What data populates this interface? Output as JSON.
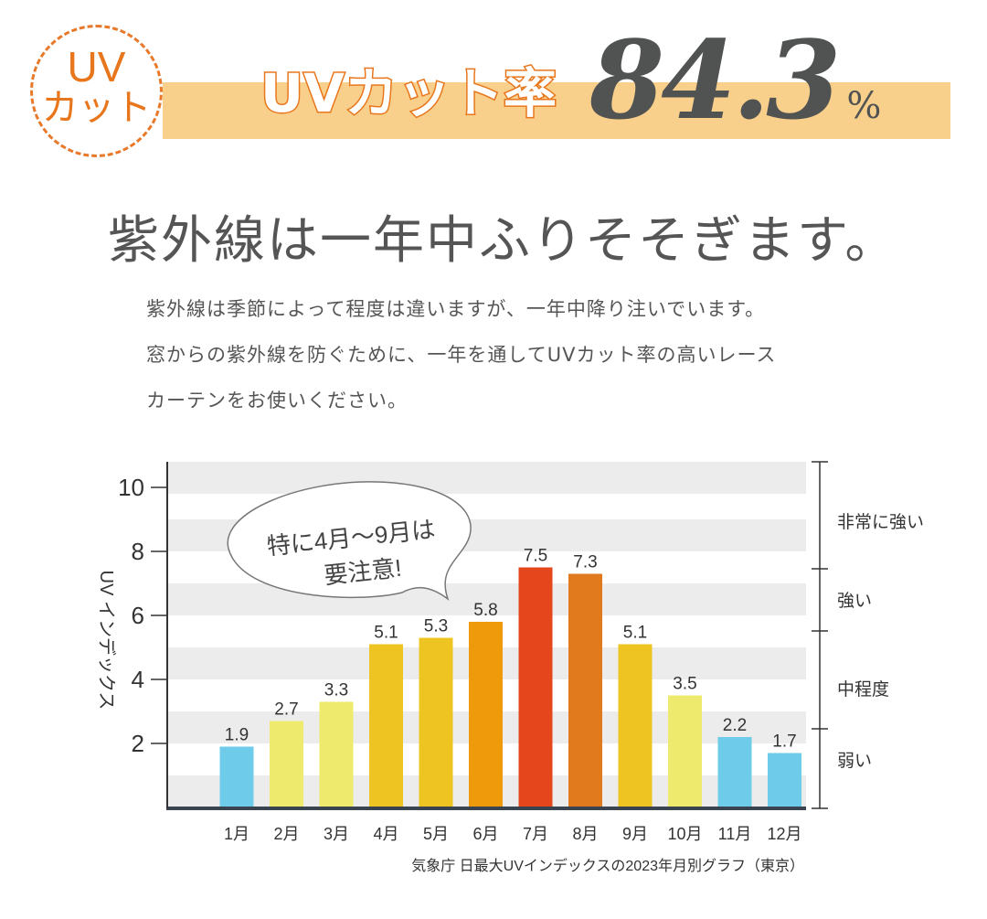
{
  "badge": {
    "line1": "UV",
    "line2": "カット"
  },
  "header": {
    "headline": "UVカット率",
    "rate": "84.3",
    "unit": "%"
  },
  "subtitle": "紫外線は一年中ふりそそぎます。",
  "body": [
    "紫外線は季節によって程度は違いますが、一年中降り注いでいます。",
    "窓からの紫外線を防ぐために、一年を通してUVカット率の高いレース",
    "カーテンをお使いください。"
  ],
  "colors": {
    "accent": "#e8761c",
    "band": "#f8cf8b",
    "text": "#555555"
  },
  "chart_data": {
    "type": "bar",
    "categories": [
      "1月",
      "2月",
      "3月",
      "4月",
      "5月",
      "6月",
      "7月",
      "8月",
      "9月",
      "10月",
      "11月",
      "12月"
    ],
    "values": [
      1.9,
      2.7,
      3.3,
      5.1,
      5.3,
      5.8,
      7.5,
      7.3,
      5.1,
      3.5,
      2.2,
      1.7
    ],
    "colors": [
      "#6ecbea",
      "#eeea6e",
      "#eeea6e",
      "#eec423",
      "#eec423",
      "#ef9a0a",
      "#e5461c",
      "#e07a1d",
      "#eec423",
      "#eeea6e",
      "#6ecbea",
      "#6ecbea"
    ],
    "ylabel": "UV インデックス",
    "yticks": [
      2,
      4,
      6,
      8,
      10
    ],
    "ylim": [
      0,
      10.8
    ],
    "grid": "horizontal stripes",
    "levels": [
      "非常に強い",
      "強い",
      "中程度",
      "弱い"
    ],
    "callout": [
      "特に4月〜9月は",
      "要注意!"
    ],
    "source": "気象庁 日最大UVインデックスの2023年月別グラフ（東京）"
  }
}
